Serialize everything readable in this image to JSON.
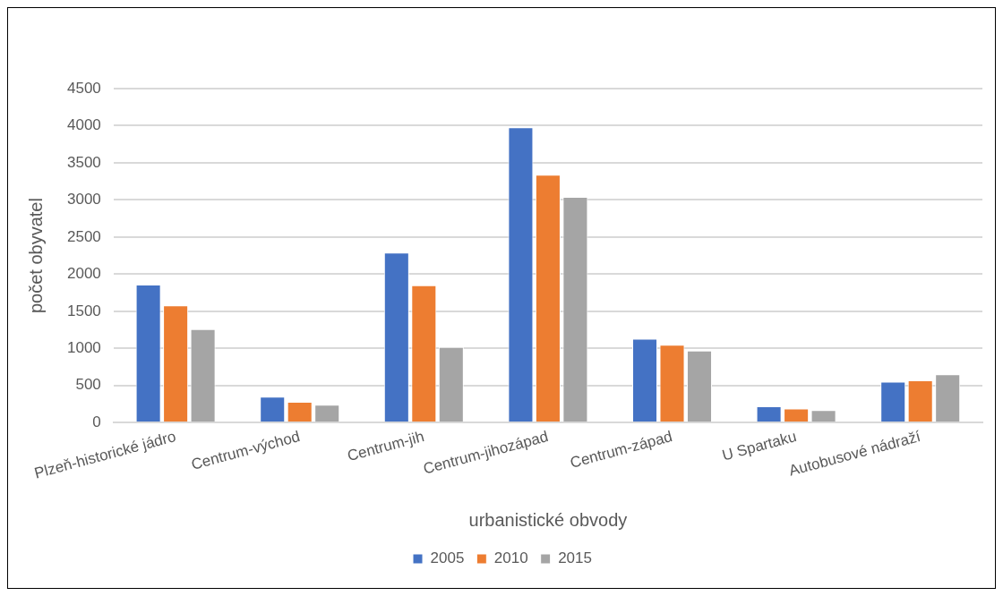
{
  "chart_data": {
    "type": "bar",
    "xlabel": "urbanistické obvody",
    "ylabel": "počet obyvatel",
    "categories": [
      "Plzeň-historické jádro",
      "Centrum-východ",
      "Centrum-jih",
      "Centrum-jihozápad",
      "Centrum-západ",
      "U Spartaku",
      "Autobusové nádraží"
    ],
    "series": [
      {
        "name": "2005",
        "color": "#4472c4",
        "values": [
          1860,
          350,
          2290,
          3980,
          1130,
          220,
          550
        ]
      },
      {
        "name": "2010",
        "color": "#ed7d31",
        "values": [
          1580,
          280,
          1850,
          3340,
          1050,
          190,
          570
        ]
      },
      {
        "name": "2015",
        "color": "#a5a5a5",
        "values": [
          1260,
          240,
          1020,
          3040,
          970,
          170,
          650
        ]
      }
    ],
    "ylim": [
      0,
      4500
    ],
    "yticks": [
      0,
      500,
      1000,
      1500,
      2000,
      2500,
      3000,
      3500,
      4000,
      4500
    ],
    "grid": "y",
    "legend": "bottom"
  }
}
